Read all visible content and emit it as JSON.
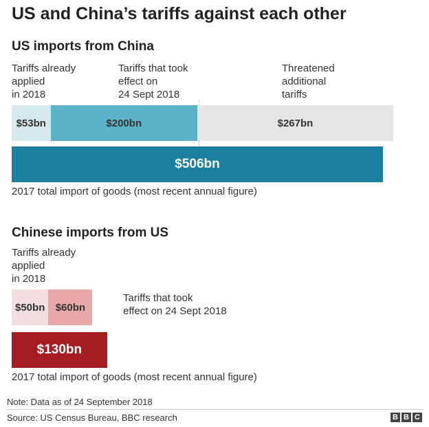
{
  "title": "US and China’s tariffs against each other",
  "note": "Note: Data as of 24 September 2018",
  "source": "Source: US Census Bureau, BBC research",
  "logo": [
    "B",
    "B",
    "C"
  ],
  "colors": {
    "us_already": "#d6e9ee",
    "us_sept": "#5cb3c9",
    "us_threatened": "#e5e5e5",
    "us_total": "#1b7f9f",
    "cn_already": "#f3dede",
    "cn_sept": "#e8a8aa",
    "cn_total": "#a51d21"
  },
  "chart_data": [
    {
      "type": "bar",
      "title": "US imports from China",
      "segments": [
        {
          "label": "Tariffs already\napplied\nin 2018",
          "value": 53,
          "value_label": "$53bn"
        },
        {
          "label": "Tariffs that took\neffect on\n24 Sept 2018",
          "value": 200,
          "value_label": "$200bn"
        },
        {
          "label": "Threatened\nadditional\ntariffs",
          "value": 267,
          "value_label": "$267bn"
        }
      ],
      "total": {
        "value": 506,
        "value_label": "$506bn",
        "label": "2017 total import of goods (most recent annual figure)"
      }
    },
    {
      "type": "bar",
      "title": "Chinese imports from US",
      "segments": [
        {
          "label": "Tariffs already\napplied\nin 2018",
          "value": 50,
          "value_label": "$50bn"
        },
        {
          "label": "Tariffs that took\neffect on 24 Sept 2018",
          "value": 60,
          "value_label": "$60bn"
        }
      ],
      "total": {
        "value": 130,
        "value_label": "$130bn",
        "label": "2017 total import of goods (most recent annual figure)"
      }
    }
  ]
}
